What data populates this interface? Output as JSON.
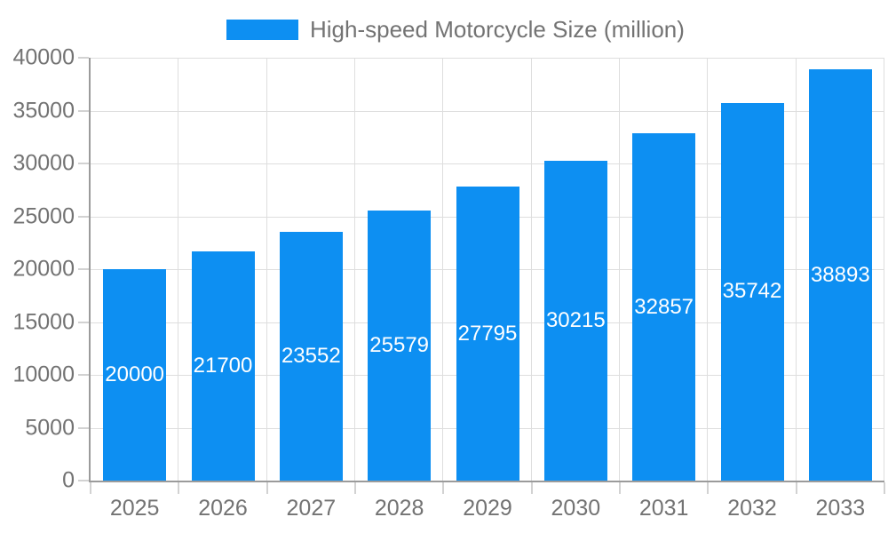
{
  "chart_data": {
    "type": "bar",
    "title": "",
    "legend": "High-speed Motorcycle Size (million)",
    "legend_position": "top",
    "categories": [
      "2025",
      "2026",
      "2027",
      "2028",
      "2029",
      "2030",
      "2031",
      "2032",
      "2033"
    ],
    "values": [
      20000,
      21700,
      23552,
      25579,
      27795,
      30215,
      32857,
      35742,
      38893
    ],
    "xlabel": "",
    "ylabel": "",
    "ylim": [
      0,
      40000
    ],
    "ytick_step": 5000,
    "ytick_labels": [
      "0",
      "5000",
      "10000",
      "15000",
      "20000",
      "25000",
      "30000",
      "35000",
      "40000"
    ],
    "grid": true,
    "value_labels": "inside-center"
  },
  "colors": {
    "bar": "#0d8ff2",
    "value_label_text": "#ffffff",
    "axis_text": "#737373",
    "grid_line": "#dedede",
    "tick_mark": "#d2d2d2",
    "axis_line": "#9b9b9b",
    "background": "#ffffff"
  }
}
